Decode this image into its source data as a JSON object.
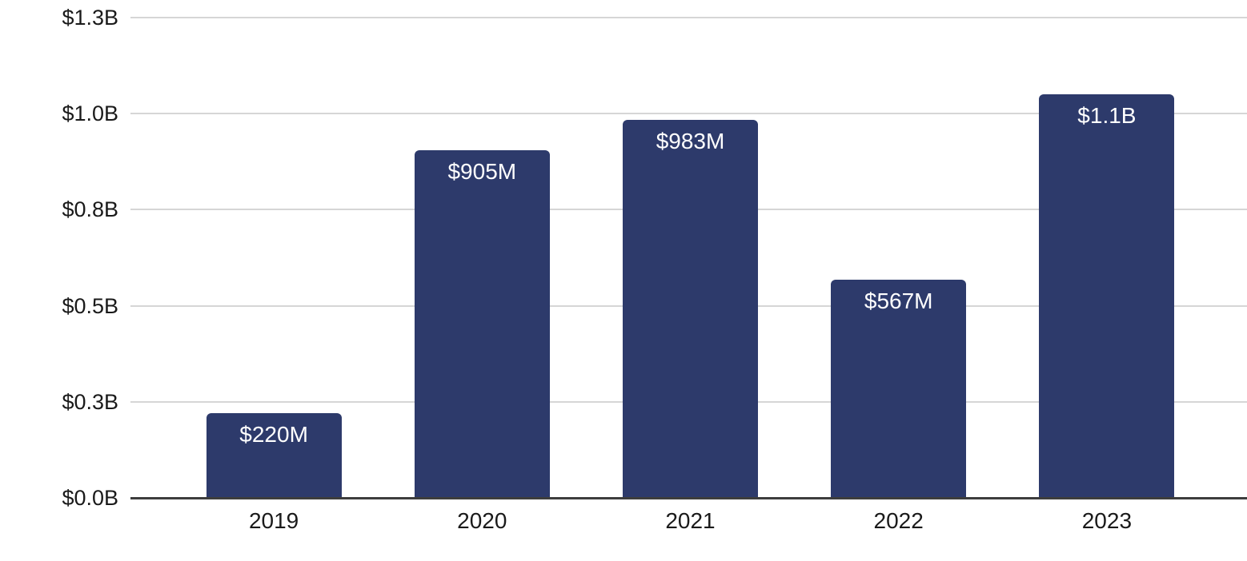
{
  "chart_data": {
    "type": "bar",
    "title": "",
    "xlabel": "",
    "ylabel": "",
    "unit": "USD",
    "categories": [
      "2019",
      "2020",
      "2021",
      "2022",
      "2023"
    ],
    "series": [
      {
        "name": "value",
        "values_millions": [
          220,
          905,
          983,
          567,
          1050
        ],
        "data_labels": [
          "$220M",
          "$905M",
          "$983M",
          "$567M",
          "$1.1B"
        ]
      }
    ],
    "y_axis": {
      "lim_billions": [
        0,
        1.25
      ],
      "ticks": [
        {
          "value_billions": 0.0,
          "label": "$0.0B"
        },
        {
          "value_billions": 0.25,
          "label": "$0.3B"
        },
        {
          "value_billions": 0.5,
          "label": "$0.5B"
        },
        {
          "value_billions": 0.75,
          "label": "$0.8B"
        },
        {
          "value_billions": 1.0,
          "label": "$1.0B"
        },
        {
          "value_billions": 1.25,
          "label": "$1.3B"
        }
      ]
    },
    "legend": "none",
    "grid": "horizontal"
  },
  "colors": {
    "bar": "#2d3a6b",
    "bar_label_text": "#ffffff",
    "gridline": "#d6d6d6",
    "axis_baseline": "#3d3d3d",
    "tick_text": "#1a1a1a",
    "background": "#ffffff"
  }
}
